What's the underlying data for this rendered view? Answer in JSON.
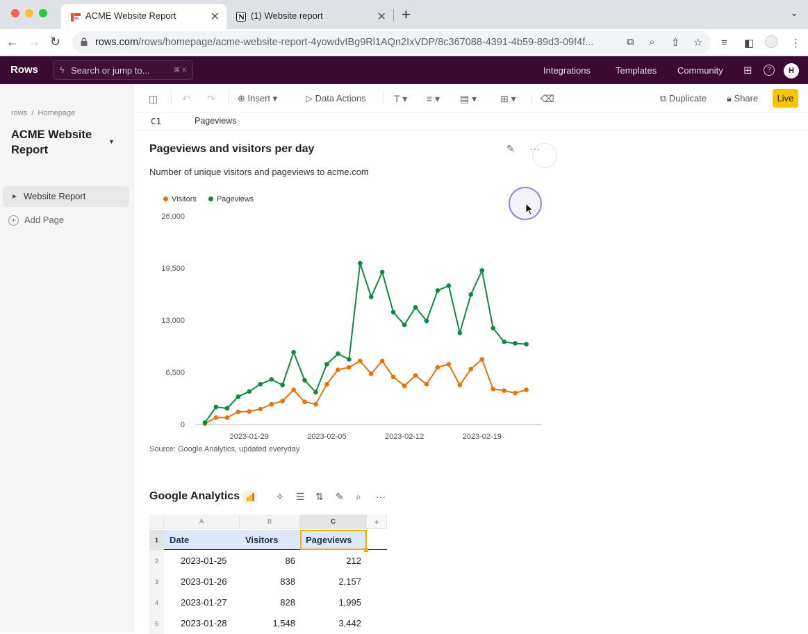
{
  "browser": {
    "tabs": [
      {
        "title": "ACME Website Report",
        "active": true
      },
      {
        "title": "(1) Website report",
        "active": false
      }
    ],
    "url_host": "rows.com",
    "url_path": "/rows/homepage/acme-website-report-4yowdvIBg9Rl1AQn2IxVDP/8c367088-4391-4b59-89d3-09f4f..."
  },
  "app": {
    "brand": "Rows",
    "search_placeholder": "Search or jump to...",
    "search_shortcut": "⌘ K",
    "nav": [
      "Integrations",
      "Templates",
      "Community"
    ],
    "avatar": "H"
  },
  "sidebar": {
    "breadcrumb_root": "rows",
    "breadcrumb_sep": "/",
    "breadcrumb_page": "Homepage",
    "doc_title": "ACME Website Report",
    "pages": [
      {
        "label": "Website Report"
      }
    ],
    "add_page": "Add Page"
  },
  "toolbar": {
    "insert": "Insert",
    "data_actions": "Data Actions",
    "duplicate": "Duplicate",
    "share": "Share",
    "live": "Live"
  },
  "formula_bar": {
    "cell_ref": "C1",
    "value": "Pageviews"
  },
  "chart_block": {
    "title": "Pageviews and visitors per day",
    "subtitle": "Number of unique visitors and pageviews to acme.com",
    "source": "Source: Google Analytics, updated everyday"
  },
  "chart_data": {
    "type": "line",
    "x": [
      "2023-01-25",
      "2023-01-26",
      "2023-01-27",
      "2023-01-28",
      "2023-01-29",
      "2023-01-30",
      "2023-01-31",
      "2023-02-01",
      "2023-02-02",
      "2023-02-03",
      "2023-02-04",
      "2023-02-05",
      "2023-02-06",
      "2023-02-07",
      "2023-02-08",
      "2023-02-09",
      "2023-02-10",
      "2023-02-11",
      "2023-02-12",
      "2023-02-13",
      "2023-02-14",
      "2023-02-15",
      "2023-02-16",
      "2023-02-17",
      "2023-02-18",
      "2023-02-19",
      "2023-02-20",
      "2023-02-21",
      "2023-02-22",
      "2023-02-23"
    ],
    "series": [
      {
        "name": "Visitors",
        "color": "#e8710a",
        "values": [
          86,
          838,
          828,
          1548,
          1600,
          1900,
          2500,
          2900,
          4300,
          2800,
          2500,
          5000,
          6800,
          7100,
          7900,
          6300,
          7900,
          5900,
          4800,
          6100,
          5000,
          7100,
          7500,
          4900,
          6900,
          8100,
          4400,
          4200,
          3900,
          4300
        ]
      },
      {
        "name": "Pageviews",
        "color": "#0d8a3e",
        "values": [
          212,
          2157,
          1995,
          3442,
          4100,
          5000,
          5600,
          4900,
          9000,
          5500,
          4000,
          7500,
          8800,
          8100,
          20100,
          15900,
          19000,
          14000,
          12400,
          14600,
          12900,
          16700,
          17300,
          11400,
          16200,
          19200,
          12000,
          10300,
          10100,
          10000
        ]
      }
    ],
    "y_ticks": [
      "0",
      "6,500",
      "13,000",
      "19,500",
      "26,000"
    ],
    "x_ticks": [
      "2023-01-29",
      "2023-02-05",
      "2023-02-12",
      "2023-02-19"
    ],
    "ylim": [
      0,
      26000
    ],
    "legend_position": "top-left",
    "grid": false
  },
  "table_block": {
    "title": "Google Analytics",
    "columns": [
      "A",
      "B",
      "C"
    ],
    "add_col": "+",
    "headers": [
      "Date",
      "Visitors",
      "Pageviews"
    ],
    "rows": [
      {
        "n": "2",
        "date": "2023-01-25",
        "visitors": "86",
        "pageviews": "212"
      },
      {
        "n": "3",
        "date": "2023-01-26",
        "visitors": "838",
        "pageviews": "2,157"
      },
      {
        "n": "4",
        "date": "2023-01-27",
        "visitors": "828",
        "pageviews": "1,995"
      },
      {
        "n": "5",
        "date": "2023-01-28",
        "visitors": "1,548",
        "pageviews": "3,442"
      }
    ],
    "header_row_num": "1"
  },
  "colors": {
    "app_header": "#3a0a33",
    "live": "#f7c400",
    "visitors": "#e8710a",
    "pageviews": "#0d8a3e"
  }
}
